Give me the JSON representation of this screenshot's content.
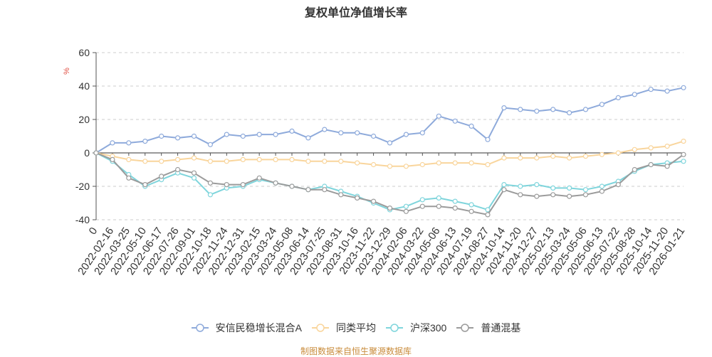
{
  "source_note": "制图数据来自恒生聚源数据库",
  "chart_data": {
    "type": "line",
    "title": "复权单位净值增长率",
    "ylabel": "%",
    "ylabel_color": "#e04b3f",
    "ylim": [
      -40,
      60
    ],
    "y_ticks": [
      60,
      40,
      20,
      0,
      -20,
      -40
    ],
    "grid": true,
    "legend_position": "bottom",
    "x": [
      "0",
      "2022-02-16",
      "2022-03-25",
      "2022-05-10",
      "2022-06-17",
      "2022-07-26",
      "2022-09-01",
      "2022-10-18",
      "2022-11-24",
      "2022-12-31",
      "2023-02-15",
      "2023-03-24",
      "2023-05-08",
      "2023-06-14",
      "2023-07-25",
      "2023-08-31",
      "2023-10-16",
      "2023-11-22",
      "2023-12-29",
      "2024-02-06",
      "2024-03-22",
      "2024-05-06",
      "2024-06-13",
      "2024-07-19",
      "2024-08-27",
      "2024-10-14",
      "2024-11-20",
      "2024-12-27",
      "2025-02-13",
      "2025-03-24",
      "2025-05-06",
      "2025-06-13",
      "2025-07-22",
      "2025-08-28",
      "2025-10-14",
      "2025-11-20",
      "2026-01-21"
    ],
    "series": [
      {
        "name": "安信民稳增长混合A",
        "color": "#8eaadb",
        "values": [
          0,
          6,
          6,
          7,
          10,
          9,
          10,
          5,
          11,
          10,
          11,
          11,
          13,
          9,
          14,
          12,
          12,
          10,
          6,
          11,
          12,
          22,
          19,
          16,
          8,
          27,
          26,
          25,
          26,
          24,
          26,
          29,
          33,
          35,
          38,
          37,
          39
        ]
      },
      {
        "name": "同类平均",
        "color": "#f9d59c",
        "values": [
          0,
          -2,
          -4,
          -5,
          -5,
          -4,
          -3,
          -5,
          -5,
          -4,
          -4,
          -4,
          -4,
          -5,
          -5,
          -5,
          -6,
          -7,
          -8,
          -8,
          -7,
          -6,
          -6,
          -6,
          -7,
          -3,
          -3,
          -3,
          -2,
          -3,
          -2,
          -1,
          0,
          2,
          3,
          4,
          7
        ]
      },
      {
        "name": "沪深300",
        "color": "#7fd5dc",
        "values": [
          0,
          -5,
          -13,
          -20,
          -16,
          -12,
          -15,
          -25,
          -21,
          -20,
          -16,
          -18,
          -20,
          -22,
          -20,
          -23,
          -26,
          -30,
          -34,
          -32,
          -28,
          -27,
          -29,
          -31,
          -34,
          -19,
          -20,
          -19,
          -21,
          -21,
          -22,
          -20,
          -17,
          -11,
          -7,
          -6,
          -5
        ]
      },
      {
        "name": "普通混基",
        "color": "#9b9b9b",
        "values": [
          0,
          -4,
          -15,
          -19,
          -14,
          -10,
          -12,
          -18,
          -19,
          -19,
          -15,
          -18,
          -20,
          -22,
          -22,
          -25,
          -27,
          -29,
          -33,
          -35,
          -32,
          -32,
          -33,
          -35,
          -37,
          -22,
          -25,
          -26,
          -25,
          -26,
          -25,
          -23,
          -19,
          -10,
          -7,
          -8,
          -1
        ]
      }
    ]
  }
}
